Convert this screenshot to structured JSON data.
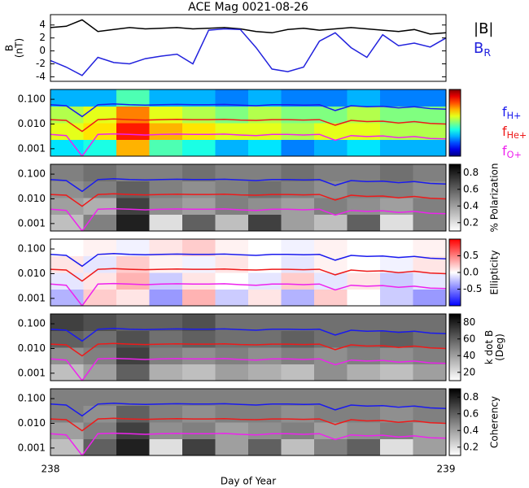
{
  "chart_data": [
    {
      "type": "line",
      "title": "ACE Mag 0021-08-26",
      "ylabel": [
        "B",
        "(nT)"
      ],
      "x": [
        238,
        238.04,
        238.08,
        238.12,
        238.16,
        238.2,
        238.24,
        238.28,
        238.32,
        238.36,
        238.4,
        238.44,
        238.48,
        238.52,
        238.56,
        238.6,
        238.64,
        238.68,
        238.72,
        238.76,
        238.8,
        238.84,
        238.88,
        238.92,
        238.96,
        239
      ],
      "xlim": [
        238,
        239
      ],
      "ylim": [
        -4.7,
        5.6
      ],
      "yticks": [
        -4,
        -2,
        0,
        2,
        4
      ],
      "series": [
        {
          "name": "|B|",
          "color": "#000000",
          "values": [
            3.6,
            3.8,
            4.8,
            3.0,
            3.3,
            3.6,
            3.4,
            3.5,
            3.6,
            3.4,
            3.5,
            3.6,
            3.4,
            3.0,
            2.8,
            3.3,
            3.5,
            3.2,
            3.4,
            3.6,
            3.4,
            3.2,
            3.0,
            3.3,
            2.6,
            2.8
          ]
        },
        {
          "name": "B",
          "subscript": "R",
          "color": "#2222dd",
          "values": [
            -1.5,
            -2.5,
            -3.8,
            -1.0,
            -1.8,
            -2.0,
            -1.2,
            -0.8,
            -0.5,
            -2.0,
            3.2,
            3.4,
            3.3,
            0.5,
            -2.8,
            -3.2,
            -2.5,
            1.5,
            2.8,
            0.5,
            -1.0,
            2.5,
            0.8,
            1.2,
            0.6,
            2.0
          ]
        }
      ]
    },
    {
      "type": "heatmap",
      "log_scale": true,
      "colormap": "jet",
      "clim": [
        0,
        1
      ],
      "ylim": [
        0.0005,
        0.25
      ],
      "yticks": [
        {
          "value": 0.001,
          "label": "0.001"
        },
        {
          "value": 0.01,
          "label": "0.010"
        },
        {
          "value": 0.1,
          "label": "0.100"
        }
      ],
      "z": [
        [
          0.35,
          0.4,
          0.7,
          0.45,
          0.4,
          0.3,
          0.35,
          0.25,
          0.3,
          0.35,
          0.3,
          0.3
        ],
        [
          0.6,
          0.65,
          0.85,
          0.7,
          0.65,
          0.6,
          0.6,
          0.55,
          0.6,
          0.6,
          0.55,
          0.55
        ],
        [
          0.55,
          0.6,
          0.75,
          0.6,
          0.55,
          0.5,
          0.55,
          0.5,
          0.5,
          0.55,
          0.5,
          0.5
        ],
        [
          0.3,
          0.3,
          0.45,
          0.3,
          0.3,
          0.25,
          0.3,
          0.25,
          0.25,
          0.3,
          0.25,
          0.25
        ]
      ],
      "series": [
        {
          "name": "f",
          "subscript": "H+",
          "color": "#1a1aee",
          "values": [
            0.06,
            0.055,
            0.02,
            0.06,
            0.065,
            0.06,
            0.058,
            0.06,
            0.062,
            0.06,
            0.06,
            0.062,
            0.058,
            0.055,
            0.06,
            0.06,
            0.058,
            0.06,
            0.035,
            0.055,
            0.05,
            0.052,
            0.045,
            0.05,
            0.042,
            0.04
          ]
        },
        {
          "name": "f",
          "subscript": "He+",
          "color": "#ee1a1a",
          "values": [
            0.015,
            0.014,
            0.005,
            0.015,
            0.016,
            0.015,
            0.0145,
            0.015,
            0.0155,
            0.015,
            0.015,
            0.0155,
            0.0145,
            0.014,
            0.015,
            0.015,
            0.0145,
            0.015,
            0.009,
            0.014,
            0.0125,
            0.013,
            0.011,
            0.0125,
            0.0105,
            0.01
          ]
        },
        {
          "name": "f",
          "subscript": "O+",
          "color": "#ee22ee",
          "values": [
            0.0038,
            0.0034,
            0.0005,
            0.0038,
            0.004,
            0.0038,
            0.0036,
            0.0038,
            0.0039,
            0.0038,
            0.0038,
            0.0039,
            0.0036,
            0.0034,
            0.0038,
            0.0038,
            0.0036,
            0.0038,
            0.0022,
            0.0034,
            0.0031,
            0.0033,
            0.0028,
            0.0031,
            0.0026,
            0.0025
          ]
        }
      ]
    },
    {
      "type": "heatmap",
      "log_scale": true,
      "colormap": "gray_r",
      "clim": [
        0.1,
        0.9
      ],
      "colorbar_label": [
        "% Polarization"
      ],
      "colorbar_ticks": [
        0.2,
        0.4,
        0.6,
        0.8
      ],
      "ylim": [
        0.0005,
        0.25
      ],
      "yticks": [
        {
          "value": 0.001,
          "label": "0.001"
        },
        {
          "value": 0.01,
          "label": "0.010"
        },
        {
          "value": 0.1,
          "label": "0.100"
        }
      ],
      "z": [
        [
          0.3,
          0.5,
          0.8,
          0.2,
          0.6,
          0.3,
          0.7,
          0.4,
          0.3,
          0.6,
          0.2,
          0.5
        ],
        [
          0.4,
          0.35,
          0.7,
          0.45,
          0.4,
          0.5,
          0.45,
          0.4,
          0.5,
          0.45,
          0.4,
          0.5
        ],
        [
          0.45,
          0.5,
          0.6,
          0.5,
          0.45,
          0.5,
          0.55,
          0.5,
          0.45,
          0.5,
          0.5,
          0.45
        ],
        [
          0.5,
          0.55,
          0.5,
          0.5,
          0.55,
          0.5,
          0.5,
          0.55,
          0.5,
          0.5,
          0.55,
          0.5
        ]
      ]
    },
    {
      "type": "heatmap",
      "log_scale": true,
      "colormap": "bwr",
      "clim": [
        -1,
        1
      ],
      "colorbar_label": [
        "Ellipticity"
      ],
      "colorbar_ticks": [
        -0.5,
        {
          "value": 0,
          "label": "0.0"
        },
        0.5
      ],
      "ylim": [
        0.0005,
        0.25
      ],
      "yticks": [
        {
          "value": 0.001,
          "label": "0.001"
        },
        {
          "value": 0.01,
          "label": "0.010"
        },
        {
          "value": 0.1,
          "label": "0.100"
        }
      ],
      "z": [
        [
          -0.3,
          0.2,
          0.1,
          -0.4,
          0.3,
          -0.2,
          0.1,
          -0.3,
          0.2,
          0,
          -0.2,
          -0.4
        ],
        [
          -0.1,
          0.1,
          0.3,
          -0.2,
          0.1,
          0,
          -0.1,
          0.2,
          -0.1,
          0.1,
          -0.2,
          -0.1
        ],
        [
          0.1,
          -0.1,
          0.2,
          0.05,
          -0.05,
          0.1,
          0,
          -0.1,
          0.05,
          0,
          -0.05,
          0.1
        ],
        [
          0,
          0.05,
          -0.05,
          0.1,
          0.2,
          0.05,
          0,
          -0.05,
          0.05,
          0,
          0,
          0.05
        ]
      ]
    },
    {
      "type": "heatmap",
      "log_scale": true,
      "colormap": "gray_r",
      "clim": [
        10,
        90
      ],
      "colorbar_label": [
        "k dot B",
        "(Deg)"
      ],
      "colorbar_ticks": [
        20,
        40,
        60,
        80
      ],
      "ylim": [
        0.0005,
        0.25
      ],
      "yticks": [
        {
          "value": 0.001,
          "label": "0.001"
        },
        {
          "value": 0.01,
          "label": "0.010"
        },
        {
          "value": 0.1,
          "label": "0.100"
        }
      ],
      "z": [
        [
          30,
          40,
          60,
          35,
          30,
          40,
          35,
          30,
          45,
          35,
          30,
          40
        ],
        [
          45,
          50,
          70,
          50,
          45,
          50,
          45,
          50,
          45,
          50,
          45,
          50
        ],
        [
          60,
          55,
          65,
          55,
          60,
          55,
          55,
          60,
          55,
          55,
          60,
          55
        ],
        [
          70,
          65,
          60,
          60,
          65,
          55,
          55,
          55,
          55,
          55,
          55,
          55
        ]
      ]
    },
    {
      "type": "heatmap",
      "log_scale": true,
      "colormap": "gray_r",
      "clim": [
        0.1,
        0.9
      ],
      "colorbar_label": [
        "Coherency"
      ],
      "colorbar_ticks": [
        0.2,
        0.4,
        0.6,
        0.8
      ],
      "xticks": [
        238,
        239
      ],
      "xlabel": "Day of Year",
      "ylim": [
        0.0005,
        0.25
      ],
      "yticks": [
        {
          "value": 0.001,
          "label": "0.001"
        },
        {
          "value": 0.01,
          "label": "0.010"
        },
        {
          "value": 0.1,
          "label": "0.100"
        }
      ],
      "z": [
        [
          0.3,
          0.6,
          0.8,
          0.2,
          0.7,
          0.4,
          0.6,
          0.3,
          0.5,
          0.6,
          0.2,
          0.4
        ],
        [
          0.4,
          0.5,
          0.7,
          0.45,
          0.5,
          0.4,
          0.45,
          0.5,
          0.4,
          0.45,
          0.5,
          0.4
        ],
        [
          0.5,
          0.45,
          0.6,
          0.5,
          0.45,
          0.5,
          0.5,
          0.45,
          0.5,
          0.5,
          0.45,
          0.5
        ],
        [
          0.5,
          0.5,
          0.5,
          0.5,
          0.5,
          0.5,
          0.5,
          0.5,
          0.5,
          0.5,
          0.5,
          0.5
        ]
      ]
    }
  ]
}
